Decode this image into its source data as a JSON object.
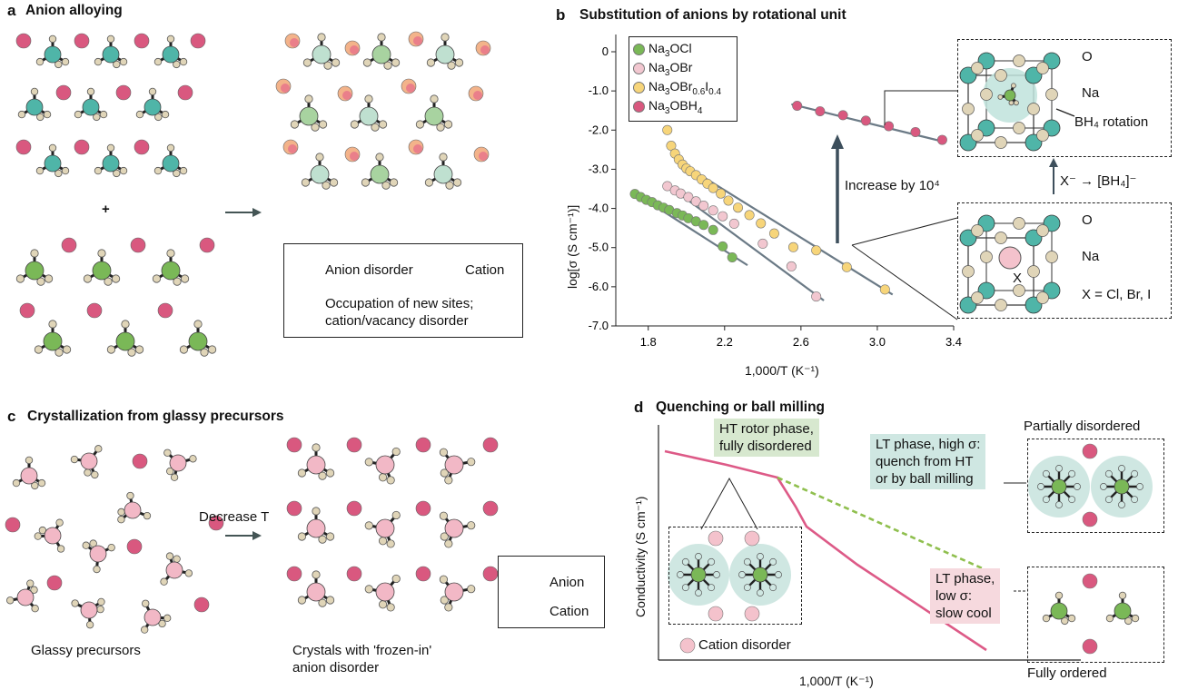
{
  "panel_a": {
    "letter": "a",
    "title": "Anion alloying",
    "plus": "+",
    "legend": {
      "anion_disorder": "Anion disorder",
      "cation": "Cation",
      "new_sites_line1": "Occupation of new sites;",
      "new_sites_line2": "cation/vacancy disorder"
    }
  },
  "panel_b": {
    "letter": "b",
    "title": "Substitution of anions by rotational unit",
    "ylabel": "log[σ (S cm⁻¹)]",
    "xlabel": "1,000/T (K⁻¹)",
    "increase_label": "Increase by 10⁴",
    "transform_label": "X⁻ → [BH₄]⁻",
    "top_cell": {
      "o": "O",
      "na": "Na",
      "bh4": "BH₄ rotation"
    },
    "bottom_cell": {
      "o": "O",
      "na": "Na",
      "x": "X",
      "x_def": "X = Cl, Br, I"
    },
    "colors": {
      "green": "#7ab857",
      "pink_light": "#f2c7d0",
      "yellow": "#f7d57a",
      "magenta": "#d9587f",
      "teal": "#4fb5a8",
      "tan": "#e0d5b8",
      "line": "#6b7a86"
    }
  },
  "panel_c": {
    "letter": "c",
    "title": "Crystallization from glassy precursors",
    "arrow_label": "Decrease T",
    "glassy_caption": "Glassy precursors",
    "crystals_line1": "Crystals with 'frozen-in'",
    "crystals_line2": "anion disorder",
    "legend": {
      "anion": "Anion",
      "cation": "Cation"
    }
  },
  "panel_d": {
    "letter": "d",
    "title": "Quenching or ball milling",
    "ylabel": "Conductivity (S cm⁻¹)",
    "xlabel": "1,000/T (K⁻¹)",
    "ht_note_line1": "HT rotor phase,",
    "ht_note_line2": "fully disordered",
    "lt_high_line1": "LT phase, high σ:",
    "lt_high_line2": "quench from HT",
    "lt_high_line3": "or by ball milling",
    "lt_low_line1": "LT phase,",
    "lt_low_line2": "low σ:",
    "lt_low_line3": "slow cool",
    "partially": "Partially disordered",
    "fully": "Fully ordered",
    "cation_disorder": "Cation disorder"
  },
  "chart_data": {
    "type": "scatter",
    "title": "Substitution of anions by rotational unit",
    "xlabel": "1,000/T (K⁻¹)",
    "ylabel": "log[σ (S cm⁻¹)]",
    "xlim": [
      1.6,
      3.4
    ],
    "ylim": [
      -7.0,
      0.3
    ],
    "xticks": [
      "1.8",
      "2.2",
      "2.6",
      "3.0",
      "3.4"
    ],
    "yticks": [
      "0",
      "-1.0",
      "-2.0",
      "-3.0",
      "-4.0",
      "-5.0",
      "-6.0",
      "-7.0"
    ],
    "legend_position": "top-left",
    "series": [
      {
        "name": "Na3OCl",
        "legend": [
          "Na",
          "3",
          "OCl"
        ],
        "color": "#7ab857",
        "x": [
          1.73,
          1.76,
          1.79,
          1.82,
          1.85,
          1.88,
          1.91,
          1.95,
          1.98,
          2.01,
          2.05,
          2.09,
          2.14,
          2.19,
          2.24
        ],
        "y": [
          -3.63,
          -3.71,
          -3.78,
          -3.84,
          -3.92,
          -3.98,
          -4.04,
          -4.12,
          -4.18,
          -4.25,
          -4.33,
          -4.42,
          -4.55,
          -4.97,
          -5.25
        ],
        "fit": [
          [
            1.72,
            -3.58
          ],
          [
            2.32,
            -5.45
          ]
        ]
      },
      {
        "name": "Na3OBr",
        "legend": [
          "Na",
          "3",
          "OBr"
        ],
        "color": "#f2c7d0",
        "x": [
          1.9,
          1.94,
          1.97,
          2.01,
          2.05,
          2.09,
          2.14,
          2.19,
          2.25,
          2.4,
          2.55,
          2.68
        ],
        "y": [
          -3.43,
          -3.54,
          -3.62,
          -3.71,
          -3.82,
          -3.93,
          -4.05,
          -4.2,
          -4.39,
          -4.9,
          -5.48,
          -6.25
        ],
        "fit": [
          [
            1.9,
            -3.4
          ],
          [
            2.72,
            -6.35
          ]
        ]
      },
      {
        "name": "Na3OBr0.6I0.4",
        "legend": [
          "Na",
          "3",
          "OBr",
          "0.6",
          "I",
          "0.4"
        ],
        "color": "#f7d57a",
        "x": [
          1.9,
          1.92,
          1.94,
          1.96,
          1.98,
          2.0,
          2.02,
          2.05,
          2.08,
          2.11,
          2.14,
          2.18,
          2.22,
          2.27,
          2.33,
          2.39,
          2.46,
          2.56,
          2.68,
          2.84,
          3.04
        ],
        "y": [
          -2.0,
          -2.4,
          -2.6,
          -2.75,
          -2.88,
          -2.98,
          -3.05,
          -3.15,
          -3.26,
          -3.37,
          -3.48,
          -3.62,
          -3.8,
          -3.98,
          -4.17,
          -4.38,
          -4.64,
          -4.99,
          -5.07,
          -5.5,
          -6.07
        ],
        "fit": [
          [
            2.05,
            -3.08
          ],
          [
            3.08,
            -6.2
          ]
        ]
      },
      {
        "name": "Na3OBH4",
        "legend": [
          "Na",
          "3",
          "OBH",
          "4"
        ],
        "color": "#d9587f",
        "x": [
          2.58,
          2.7,
          2.82,
          2.94,
          3.06,
          3.2,
          3.34
        ],
        "y": [
          -1.38,
          -1.52,
          -1.62,
          -1.76,
          -1.9,
          -2.05,
          -2.25
        ],
        "fit": [
          [
            2.55,
            -1.34
          ],
          [
            3.35,
            -2.3
          ]
        ]
      }
    ]
  }
}
